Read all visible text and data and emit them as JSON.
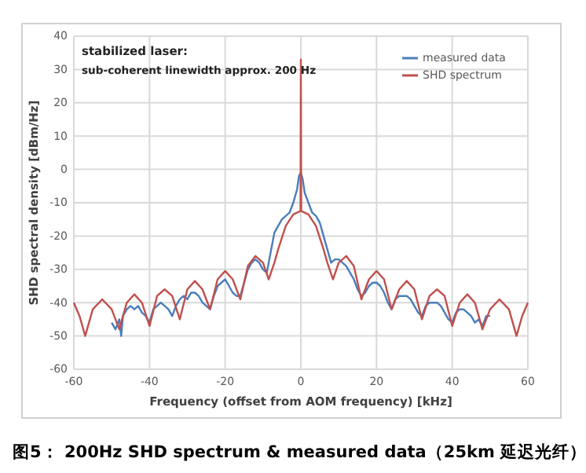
{
  "chart_data": {
    "type": "line",
    "xlabel": "Frequency (offset from AOM frequency) [kHz]",
    "ylabel": "SHD spectral density [dBm/Hz]",
    "xlim": [
      -60,
      60
    ],
    "xticks": [
      -60,
      -40,
      -20,
      0,
      20,
      40,
      60
    ],
    "ylim": [
      -60,
      40
    ],
    "yticks": [
      -60,
      -50,
      -40,
      -30,
      -20,
      -10,
      0,
      10,
      20,
      30,
      40
    ],
    "grid": true,
    "legend": "top right",
    "line_style": "solid",
    "annotations": [
      "stabilized laser:",
      "sub-coherent linewidth approx. 200 Hz",
      "图5： 200Hz SHD spectrum & measured data（25km 延迟光纤）"
    ],
    "series": [
      {
        "name": "measured data",
        "color": "#4a7ebb",
        "x": [
          -50,
          -49,
          -48,
          -47.5,
          -47,
          -46,
          -45,
          -44,
          -43,
          -42,
          -41,
          -40,
          -39,
          -38,
          -37,
          -36,
          -35,
          -34,
          -33,
          -32,
          -31,
          -30,
          -29,
          -28,
          -27,
          -26,
          -25,
          -24,
          -23,
          -22,
          -21,
          -20,
          -19,
          -18,
          -17,
          -16,
          -15,
          -14,
          -13,
          -12,
          -11,
          -10,
          -9,
          -8,
          -7,
          -6,
          -5,
          -4,
          -3,
          -2,
          -1,
          -0.5,
          0,
          0.5,
          1,
          2,
          3,
          4,
          5,
          6,
          7,
          8,
          9,
          10,
          11,
          12,
          13,
          14,
          15,
          16,
          17,
          18,
          19,
          20,
          21,
          22,
          23,
          24,
          25,
          26,
          27,
          28,
          29,
          30,
          31,
          32,
          33,
          34,
          35,
          36,
          37,
          38,
          39,
          40,
          41,
          42,
          43,
          44,
          45,
          46,
          47,
          48,
          49,
          50
        ],
        "values": [
          -46,
          -48,
          -45,
          -50,
          -44,
          -42,
          -41,
          -42,
          -41,
          -43,
          -44,
          -46,
          -42,
          -41,
          -40,
          -41,
          -42,
          -44,
          -41,
          -39,
          -38,
          -39,
          -37,
          -37,
          -38,
          -40,
          -41,
          -42,
          -38,
          -35,
          -34,
          -33,
          -35,
          -37,
          -38,
          -38,
          -34,
          -30,
          -28,
          -27,
          -28,
          -30,
          -31,
          -25,
          -19,
          -17,
          -15,
          -14,
          -13,
          -10,
          -6,
          -2,
          -1,
          -3,
          -7,
          -10,
          -13,
          -14,
          -16,
          -20,
          -24,
          -28,
          -27,
          -27,
          -28,
          -29,
          -31,
          -33,
          -36,
          -38,
          -37,
          -35,
          -34,
          -34,
          -35,
          -37,
          -40,
          -42,
          -39,
          -38,
          -38,
          -38,
          -39,
          -41,
          -43,
          -44,
          -41,
          -40,
          -40,
          -40,
          -41,
          -43,
          -45,
          -46,
          -43,
          -42,
          -42,
          -43,
          -44,
          -46,
          -45,
          -47,
          -44,
          -44
        ]
      },
      {
        "name": "SHD spectrum",
        "color": "#c0504d",
        "x": [
          -60,
          -58.5,
          -57,
          -55,
          -52.5,
          -50,
          -48,
          -46,
          -44,
          -42,
          -40,
          -38,
          -36,
          -34,
          -32,
          -30,
          -28,
          -26,
          -24,
          -22,
          -20,
          -18,
          -16,
          -14,
          -12,
          -10,
          -8.5,
          -7,
          -6,
          -4,
          -2,
          -0.1,
          0,
          0.1,
          2,
          4,
          6,
          7,
          8.5,
          10,
          12,
          14,
          16,
          18,
          20,
          22,
          24,
          26,
          28,
          30,
          32,
          34,
          36,
          38,
          40,
          42,
          44,
          46,
          48,
          50,
          52.5,
          55,
          57,
          58.5,
          60
        ],
        "values": [
          -40,
          -44,
          -50,
          -42,
          -39,
          -42,
          -48,
          -40,
          -37.5,
          -40,
          -47,
          -38,
          -36,
          -38,
          -45,
          -36,
          -33.5,
          -36,
          -42,
          -33,
          -30.5,
          -33,
          -39,
          -29,
          -26,
          -28,
          -33,
          -28,
          -24,
          -17,
          -13.5,
          -12.5,
          33,
          -12.5,
          -13.5,
          -17,
          -24,
          -28,
          -33,
          -28,
          -26,
          -29,
          -39,
          -33,
          -30.5,
          -33,
          -42,
          -36,
          -33.5,
          -36,
          -45,
          -38,
          -36,
          -38,
          -47,
          -40,
          -37.5,
          -40,
          -48,
          -42,
          -39,
          -42,
          -50,
          -44,
          -40
        ]
      }
    ]
  }
}
